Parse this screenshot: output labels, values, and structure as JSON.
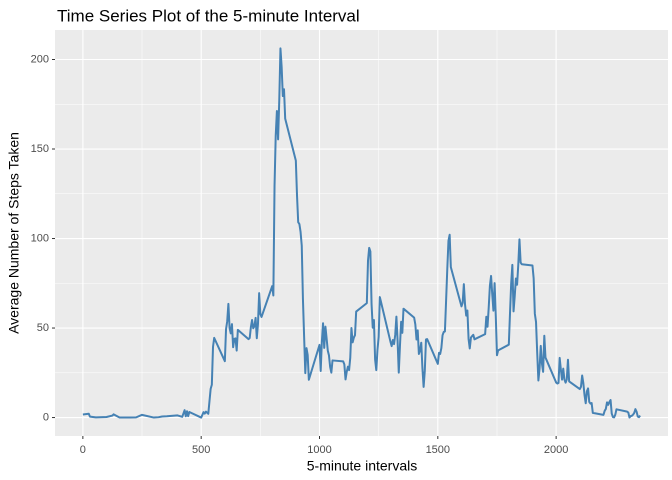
{
  "chart_data": {
    "type": "line",
    "title": "Time Series Plot of the 5-minute Interval",
    "x_label": "5-minute intervals",
    "y_label": "Average Number of Steps Taken",
    "xlim": [
      -117.75,
      2472.75
    ],
    "xticks": [
      0,
      500,
      1000,
      1500,
      2000
    ],
    "ylim": [
      -10.31,
      216.48
    ],
    "yticks": [
      0,
      50,
      100,
      150,
      200
    ],
    "grid": true,
    "x": [
      0,
      25,
      30,
      55,
      100,
      125,
      130,
      155,
      200,
      225,
      250,
      300,
      320,
      335,
      355,
      400,
      420,
      430,
      435,
      440,
      445,
      450,
      500,
      510,
      515,
      520,
      530,
      540,
      545,
      550,
      555,
      600,
      605,
      610,
      615,
      620,
      625,
      630,
      635,
      640,
      645,
      650,
      655,
      700,
      705,
      710,
      715,
      720,
      725,
      730,
      735,
      740,
      745,
      750,
      755,
      800,
      805,
      810,
      815,
      820,
      825,
      830,
      835,
      840,
      845,
      850,
      855,
      900,
      905,
      910,
      915,
      920,
      925,
      930,
      935,
      940,
      945,
      950,
      955,
      1000,
      1005,
      1010,
      1015,
      1020,
      1025,
      1030,
      1035,
      1040,
      1045,
      1050,
      1055,
      1100,
      1105,
      1110,
      1115,
      1120,
      1125,
      1130,
      1135,
      1140,
      1145,
      1150,
      1155,
      1200,
      1205,
      1210,
      1215,
      1220,
      1225,
      1230,
      1235,
      1240,
      1245,
      1250,
      1255,
      1300,
      1305,
      1310,
      1315,
      1320,
      1325,
      1330,
      1335,
      1340,
      1345,
      1350,
      1355,
      1400,
      1405,
      1410,
      1415,
      1420,
      1425,
      1430,
      1435,
      1440,
      1445,
      1450,
      1455,
      1500,
      1505,
      1510,
      1515,
      1520,
      1525,
      1530,
      1535,
      1540,
      1545,
      1550,
      1555,
      1600,
      1605,
      1610,
      1615,
      1620,
      1625,
      1630,
      1635,
      1640,
      1645,
      1650,
      1655,
      1700,
      1705,
      1710,
      1715,
      1720,
      1725,
      1730,
      1735,
      1740,
      1745,
      1750,
      1755,
      1800,
      1805,
      1810,
      1815,
      1820,
      1825,
      1830,
      1835,
      1840,
      1845,
      1850,
      1855,
      1900,
      1905,
      1910,
      1915,
      1920,
      1925,
      1930,
      1935,
      1940,
      1945,
      1950,
      1955,
      2000,
      2005,
      2010,
      2015,
      2020,
      2025,
      2030,
      2035,
      2040,
      2045,
      2050,
      2055,
      2100,
      2105,
      2110,
      2115,
      2120,
      2125,
      2130,
      2135,
      2140,
      2145,
      2150,
      2155,
      2200,
      2205,
      2210,
      2215,
      2220,
      2225,
      2230,
      2235,
      2240,
      2245,
      2250,
      2255,
      2300,
      2305,
      2310,
      2315,
      2320,
      2325,
      2330,
      2335,
      2340,
      2345,
      2350,
      2355
    ],
    "series": [
      {
        "name": "steps",
        "color": "#4682b4",
        "values": [
          1.7,
          2.1,
          0.5,
          0.1,
          0.3,
          1.1,
          1.8,
          0,
          0,
          0.1,
          1.5,
          0,
          0.2,
          0.6,
          0.7,
          1.2,
          0.4,
          4.1,
          0.7,
          3.5,
          0.8,
          3.1,
          0,
          3,
          2.2,
          3.3,
          2.1,
          16,
          18.3,
          39.5,
          44.5,
          31.5,
          49.3,
          53.8,
          63.5,
          50,
          47,
          52.2,
          39.3,
          44,
          44.2,
          37.4,
          49,
          43.8,
          44.4,
          50.5,
          54.5,
          49.9,
          51,
          55.7,
          44.3,
          52.3,
          69.5,
          57.8,
          56.2,
          73.4,
          68.2,
          129.4,
          157.5,
          171.2,
          155.4,
          177.3,
          206.2,
          195.9,
          179.6,
          183.4,
          167,
          143.5,
          124,
          109.1,
          108.1,
          103.7,
          96,
          66.2,
          45.2,
          24.8,
          38.8,
          35,
          21.1,
          40.6,
          26,
          42.4,
          52.7,
          38.9,
          50.8,
          44.3,
          37.4,
          34.7,
          28.3,
          25.1,
          31.9,
          31.4,
          29.7,
          21.3,
          25.5,
          28.4,
          26.5,
          33.4,
          50,
          42,
          44.6,
          46,
          59.2,
          63.9,
          87.7,
          94.8,
          92.8,
          63.4,
          50.2,
          54.5,
          32.4,
          26.5,
          37.7,
          45.1,
          67.3,
          42.3,
          39.9,
          43.3,
          41,
          46.2,
          56.4,
          42.8,
          25.1,
          40,
          53.5,
          47.3,
          60.8,
          55.8,
          52,
          43.6,
          48.7,
          35.5,
          37.5,
          41.8,
          27.5,
          17.1,
          26.1,
          43.6,
          43.8,
          30,
          36.1,
          35.5,
          38.8,
          46,
          47.8,
          48.1,
          65.3,
          82.9,
          98.7,
          102.1,
          84,
          62.1,
          64.1,
          74.5,
          63.2,
          56.9,
          59.8,
          43.9,
          38.6,
          44.7,
          45.5,
          46.2,
          43.7,
          46.6,
          56.3,
          50.7,
          61.2,
          73.4,
          79.1,
          68.9,
          59.7,
          75.1,
          56.5,
          34.8,
          37.5,
          40.7,
          58,
          74.7,
          85.3,
          59.3,
          67.8,
          77.7,
          74.2,
          85.3,
          99.5,
          86.6,
          85.6,
          84.9,
          77.8,
          58,
          53.4,
          36.3,
          20.7,
          27.4,
          40,
          30.2,
          25.5,
          45.7,
          33.5,
          19.6,
          19,
          19.3,
          33.3,
          26.8,
          21.2,
          27.3,
          21.3,
          19.5,
          21.3,
          32.3,
          20.2,
          15.9,
          17.2,
          23.5,
          19.2,
          12.5,
          8,
          14.7,
          16.3,
          8.7,
          7.8,
          8.1,
          2.6,
          1.5,
          3.7,
          4.8,
          8.5,
          7.1,
          8.7,
          9.8,
          2.2,
          0.3,
          0.1,
          1.6,
          4.6,
          3.3,
          2.8,
          0,
          0.8,
          1,
          1.6,
          2.6,
          4.7,
          3.3,
          0.6,
          0.2,
          1.1
        ]
      }
    ]
  }
}
